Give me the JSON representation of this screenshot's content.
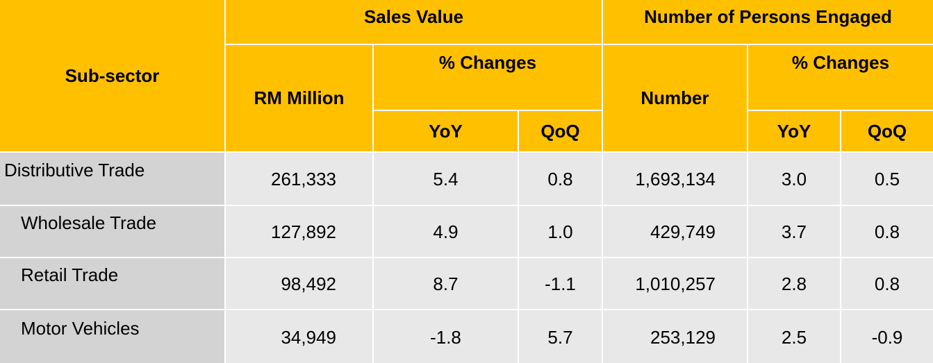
{
  "header": {
    "sub_sector": "Sub-sector",
    "sales_value": "Sales Value",
    "persons_engaged": "Number of Persons Engaged",
    "rm_million": "RM Million",
    "sales_changes": "% Changes",
    "number": "Number",
    "persons_changes": "% Changes",
    "sales_yoy": "YoY",
    "sales_qoq": "QoQ",
    "persons_yoy": "YoY",
    "persons_qoq": "QoQ"
  },
  "table": {
    "rows": [
      [
        "Distributive Trade",
        "261,333",
        "5.4",
        "0.8",
        "1,693,134",
        "3.0",
        "0.5"
      ],
      [
        "Wholesale Trade",
        "127,892",
        "4.9",
        "1.0",
        "429,749",
        "3.7",
        "0.8"
      ],
      [
        "Retail Trade",
        "98,492",
        "8.7",
        "-1.1",
        "1,010,257",
        "2.8",
        "0.8"
      ],
      [
        "Motor Vehicles",
        "34,949",
        "-1.8",
        "5.7",
        "253,129",
        "2.5",
        "-0.9"
      ]
    ]
  }
}
